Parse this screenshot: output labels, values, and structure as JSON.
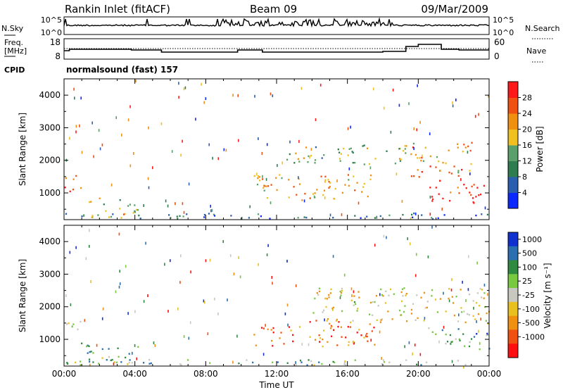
{
  "header": {
    "station": "Rankin Inlet (fitACF)",
    "beam": "Beam 09",
    "date": "09/Mar/2009"
  },
  "top_panel": {
    "left_label": "N.Sky",
    "right_label": "N.Search",
    "left_ticks": [
      "10^5",
      "10^0"
    ],
    "right_ticks": [
      "10^5",
      "10^0"
    ]
  },
  "freq_panel": {
    "left_label_1": "Freq.",
    "left_label_2": "[MHz]",
    "right_label": "Nave",
    "left_ticks": [
      "18",
      "8"
    ],
    "right_ticks": [
      "60",
      "0"
    ]
  },
  "cpid": {
    "label": "CPID",
    "value": "normalsound (fast) 157"
  },
  "colors": {
    "power": [
      "#0a28ff",
      "#2a5fb0",
      "#2e7d4f",
      "#5aa06a",
      "#f0c020",
      "#f09010",
      "#f05010",
      "#ff1a1a"
    ],
    "velocity": [
      "#1030d0",
      "#2a6fb0",
      "#2d8a3e",
      "#78c840",
      "#c8c8c0",
      "#e8c020",
      "#f09010",
      "#f05010",
      "#ff1010"
    ]
  },
  "chart_data": [
    {
      "type": "heatmap",
      "title": "",
      "xlabel": "",
      "ylabel": "Slant Range [km]",
      "x_ticks": [
        "00:00",
        "04:00",
        "08:00",
        "12:00",
        "16:00",
        "20:00",
        "00:00"
      ],
      "y_ticks": [
        1000,
        2000,
        3000,
        4000
      ],
      "xlim_hours": [
        0,
        24
      ],
      "ylim_km": [
        180,
        4500
      ],
      "colorbar": {
        "label": "Power [dB]",
        "ticks": [
          4,
          8,
          12,
          16,
          20,
          24,
          28
        ],
        "range": [
          0,
          32
        ]
      },
      "bands": [
        {
          "x0": 0.0,
          "x1": 1.0,
          "r0": 1000,
          "r1": 1650,
          "level": 0.85
        },
        {
          "x0": 1.0,
          "x1": 4.2,
          "r0": 250,
          "r1": 900,
          "level": 0.5
        },
        {
          "x0": 3.0,
          "x1": 4.2,
          "r0": 200,
          "r1": 450,
          "level": 0.8
        },
        {
          "x0": 10.7,
          "x1": 17.5,
          "r0": 800,
          "r1": 1600,
          "level": 0.65
        },
        {
          "x0": 12.5,
          "x1": 19.5,
          "r0": 1900,
          "r1": 2500,
          "level": 0.45
        },
        {
          "x0": 19.5,
          "x1": 23.0,
          "r0": 1500,
          "r1": 2600,
          "level": 0.7
        },
        {
          "x0": 20.5,
          "x1": 24.0,
          "r0": 700,
          "r1": 1400,
          "level": 0.9
        },
        {
          "x0": 0.0,
          "x1": 24.0,
          "r0": 180,
          "r1": 400,
          "level": 0.25
        }
      ]
    },
    {
      "type": "heatmap",
      "title": "",
      "xlabel": "Time UT",
      "ylabel": "Slant Range [km]",
      "x_ticks": [
        "00:00",
        "04:00",
        "08:00",
        "12:00",
        "16:00",
        "20:00",
        "00:00"
      ],
      "y_ticks": [
        1000,
        2000,
        3000,
        4000
      ],
      "xlim_hours": [
        0,
        24
      ],
      "ylim_km": [
        180,
        4500
      ],
      "colorbar": {
        "label": "Velocity [m s⁻¹]",
        "ticks": [
          1000,
          500,
          100,
          25,
          -25,
          -100,
          -500,
          -1000
        ]
      },
      "bands": [
        {
          "x0": 0.0,
          "x1": 1.0,
          "r0": 900,
          "r1": 1650,
          "level": 0.4
        },
        {
          "x0": 1.0,
          "x1": 4.2,
          "r0": 250,
          "r1": 900,
          "level": 0.35
        },
        {
          "x0": 10.7,
          "x1": 17.5,
          "r0": 800,
          "r1": 1600,
          "level": 0.8
        },
        {
          "x0": 14.0,
          "x1": 24.0,
          "r0": 1500,
          "r1": 2600,
          "level": 0.55
        },
        {
          "x0": 20.5,
          "x1": 24.0,
          "r0": 700,
          "r1": 1400,
          "level": 0.3
        },
        {
          "x0": 0.0,
          "x1": 24.0,
          "r0": 180,
          "r1": 400,
          "level": 0.35
        }
      ]
    }
  ]
}
